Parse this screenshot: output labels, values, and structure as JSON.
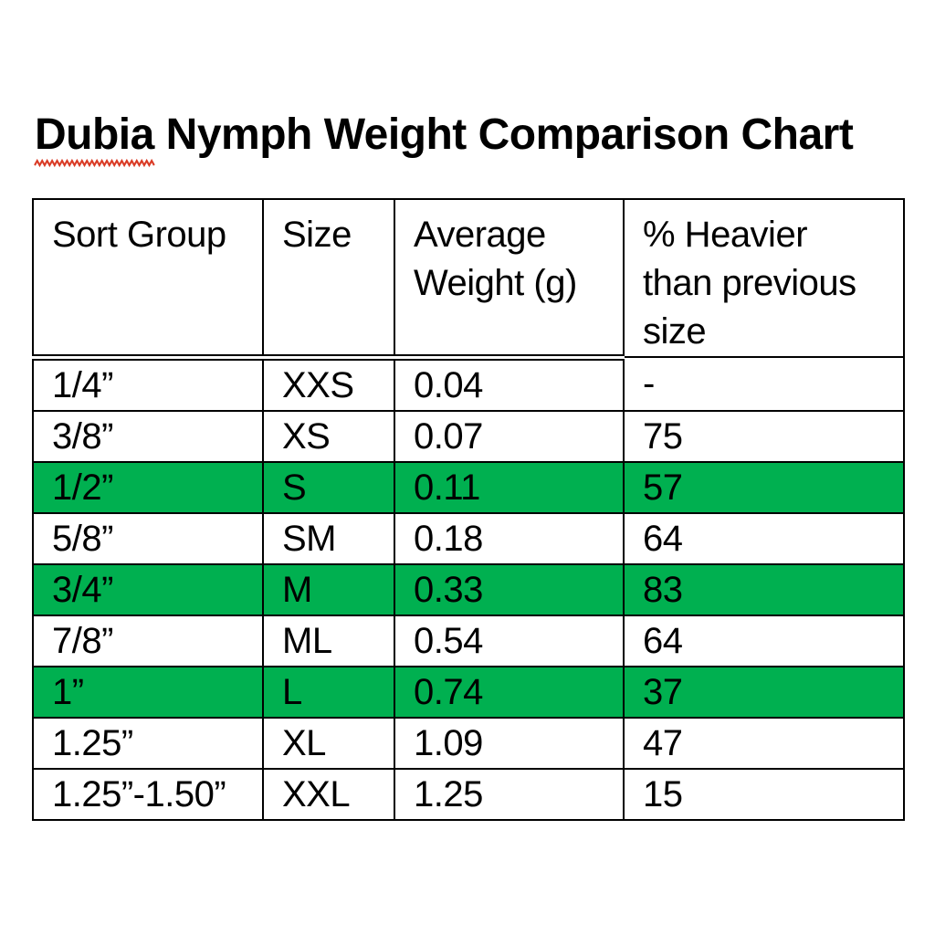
{
  "page": {
    "background": "#ffffff",
    "text_color": "#000000",
    "border_color": "#000000"
  },
  "title": {
    "full": "Dubia Nymph Weight Comparison Chart",
    "flagged_word": "Dubia",
    "rest": " Nymph Weight Comparison Chart",
    "squiggle_color": "#da3b26"
  },
  "table": {
    "highlight_color": "#00b050",
    "headers": [
      {
        "label": "Sort Group",
        "lines": [
          "Sort Group"
        ]
      },
      {
        "label": "Size",
        "lines": [
          "Size"
        ]
      },
      {
        "label": "Average Weight (g)",
        "lines": [
          "Average",
          "Weight (g)"
        ]
      },
      {
        "label": "% Heavier than previous size",
        "lines": [
          "% Heavier",
          "than previous",
          "size"
        ]
      }
    ],
    "rows": [
      {
        "highlighted": false,
        "cells": [
          "1/4”",
          "XXS",
          "0.04",
          "-"
        ]
      },
      {
        "highlighted": false,
        "cells": [
          "3/8”",
          "XS",
          "0.07",
          "75"
        ]
      },
      {
        "highlighted": true,
        "cells": [
          "1/2”",
          "S",
          "0.11",
          "57"
        ]
      },
      {
        "highlighted": false,
        "cells": [
          "5/8”",
          "SM",
          "0.18",
          "64"
        ]
      },
      {
        "highlighted": true,
        "cells": [
          "3/4”",
          "M",
          "0.33",
          "83"
        ]
      },
      {
        "highlighted": false,
        "cells": [
          "7/8”",
          "ML",
          "0.54",
          "64"
        ]
      },
      {
        "highlighted": true,
        "cells": [
          "1”",
          "L",
          "0.74",
          "37"
        ]
      },
      {
        "highlighted": false,
        "cells": [
          "1.25”",
          "XL",
          "1.09",
          "47"
        ]
      },
      {
        "highlighted": false,
        "cells": [
          "1.25”-1.50”",
          "XXL",
          "1.25",
          "15"
        ]
      }
    ]
  },
  "chart_data": {
    "type": "table",
    "title": "Dubia Nymph Weight Comparison Chart",
    "columns": [
      "Sort Group",
      "Size",
      "Average Weight (g)",
      "% Heavier than previous size"
    ],
    "rows": [
      [
        "1/4”",
        "XXS",
        0.04,
        null
      ],
      [
        "3/8”",
        "XS",
        0.07,
        75
      ],
      [
        "1/2”",
        "S",
        0.11,
        57
      ],
      [
        "5/8”",
        "SM",
        0.18,
        64
      ],
      [
        "3/4”",
        "M",
        0.33,
        83
      ],
      [
        "7/8”",
        "ML",
        0.54,
        64
      ],
      [
        "1”",
        "L",
        0.74,
        37
      ],
      [
        "1.25”",
        "XL",
        1.09,
        47
      ],
      [
        "1.25”-1.50”",
        "XXL",
        1.25,
        15
      ]
    ],
    "highlighted_rows_green": [
      "1/2”",
      "3/4”",
      "1”"
    ]
  }
}
